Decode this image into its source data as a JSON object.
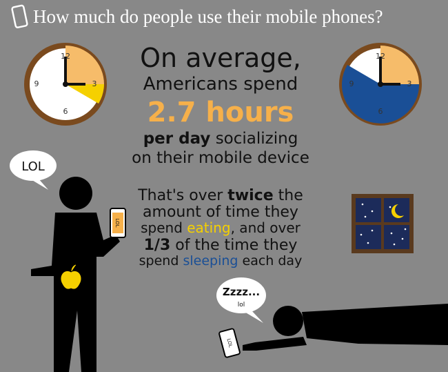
{
  "header": {
    "title": "How much do people use their mobile phones?"
  },
  "clocks": [
    {
      "numerals": [
        "12",
        "3",
        "6",
        "9"
      ]
    },
    {
      "numerals": [
        "12",
        "3",
        "6",
        "9"
      ]
    }
  ],
  "headline": {
    "line1": "On average,",
    "line2": "Americans spend",
    "highlight": "2.7 hours",
    "line4": {
      "bold": "per day",
      "rest": "socializing"
    },
    "line5": "on their mobile device"
  },
  "comparison": {
    "line1": {
      "start": "That's over",
      "bold": "twice",
      "end": "the"
    },
    "line2": "amount of time they",
    "line3": {
      "start": "spend",
      "eating": "eating",
      "end": ", and over"
    },
    "line4": {
      "bold": "1/3",
      "rest": "of the time they"
    },
    "line5": {
      "start": "spend",
      "sleeping": "sleeping",
      "end": "each day"
    }
  },
  "standing_figure": {
    "bubble": "LOL",
    "phone_screen": "LOL"
  },
  "lying_figure": {
    "bubble_main": "Zzzz...",
    "bubble_sub": "lol",
    "phone_screen": "LOL"
  }
}
